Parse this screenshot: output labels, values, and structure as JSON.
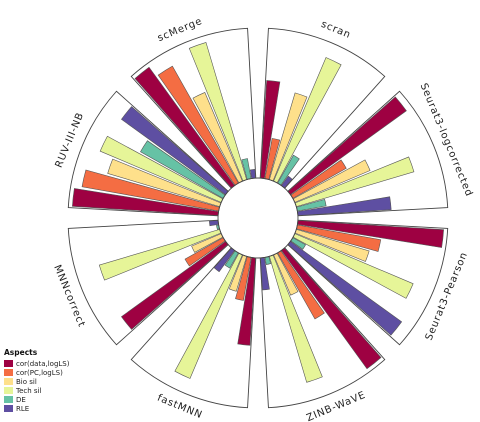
{
  "chart_data": {
    "type": "bar",
    "subtype": "circular-grouped",
    "title": "",
    "legend": {
      "title": "Aspects",
      "position": "bottom-left"
    },
    "ylim": [
      0,
      1
    ],
    "series": [
      {
        "name": "cor(data,logLS)",
        "color": "#9E0142"
      },
      {
        "name": "cor(PC,logLS)",
        "color": "#F46D43"
      },
      {
        "name": "Bio sil",
        "color": "#FEE08B"
      },
      {
        "name": "Tech sil",
        "color": "#E6F598"
      },
      {
        "name": "DE",
        "color": "#66C2A5"
      },
      {
        "name": "RLE",
        "color": "#5E4FA2"
      }
    ],
    "groups": [
      {
        "name": "scran",
        "values": [
          0.67,
          0.28,
          0.62,
          0.92,
          0.22,
          0.08
        ]
      },
      {
        "name": "Seurat3-logcorrected",
        "values": [
          0.98,
          0.42,
          0.56,
          0.84,
          0.2,
          0.64
        ]
      },
      {
        "name": "Seurat3-Pearson",
        "values": [
          1.0,
          0.58,
          0.52,
          0.88,
          0.1,
          0.94
        ]
      },
      {
        "name": "ZINB-WaVE",
        "values": [
          1.0,
          0.52,
          0.3,
          0.9,
          0.05,
          0.22
        ]
      },
      {
        "name": "fastMNN",
        "values": [
          0.6,
          0.3,
          0.25,
          0.92,
          0.12,
          0.18
        ]
      },
      {
        "name": "MNNcorrect",
        "values": [
          0.88,
          0.3,
          0.22,
          0.86,
          0.0,
          0.06
        ]
      },
      {
        "name": "RUV-III-NB",
        "values": [
          1.0,
          0.95,
          0.8,
          0.9,
          0.65,
          0.88
        ]
      },
      {
        "name": "scMerge",
        "values": [
          1.0,
          0.92,
          0.66,
          0.98,
          0.14,
          0.06
        ]
      }
    ]
  }
}
